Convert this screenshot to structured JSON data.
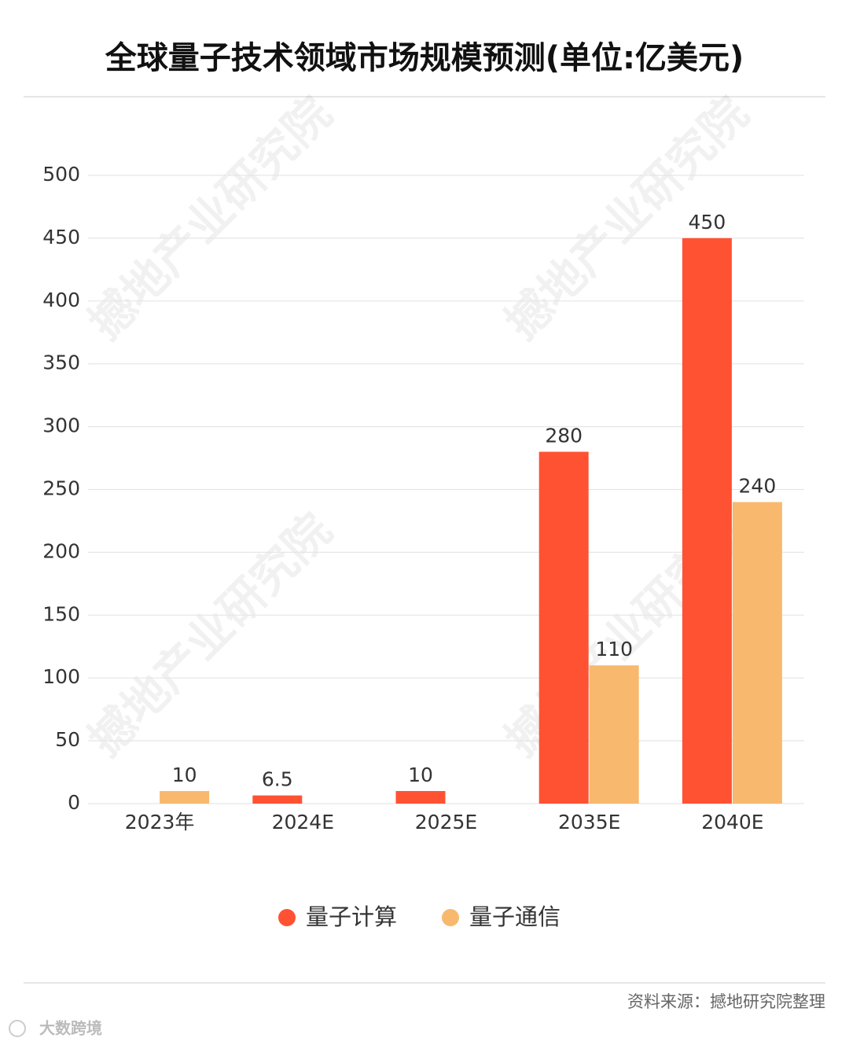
{
  "chart_data": {
    "type": "bar",
    "title": "全球量子技术领域市场规模预测(单位:亿美元)",
    "categories": [
      "2023年",
      "2024E",
      "2025E",
      "2035E",
      "2040E"
    ],
    "series": [
      {
        "name": "量子计算",
        "color": "#ff5233",
        "values": [
          null,
          6.5,
          10,
          280,
          450
        ]
      },
      {
        "name": "量子通信",
        "color": "#f8b96e",
        "values": [
          10,
          null,
          null,
          110,
          240
        ]
      }
    ],
    "ylim": [
      0,
      500
    ],
    "yticks": [
      0,
      50,
      100,
      150,
      200,
      250,
      300,
      350,
      400,
      450,
      500
    ],
    "grid": true,
    "legend": "bottom",
    "watermark": "撼地产业研究院",
    "source": "资料来源：撼地研究院整理",
    "brand": "大数跨境"
  }
}
